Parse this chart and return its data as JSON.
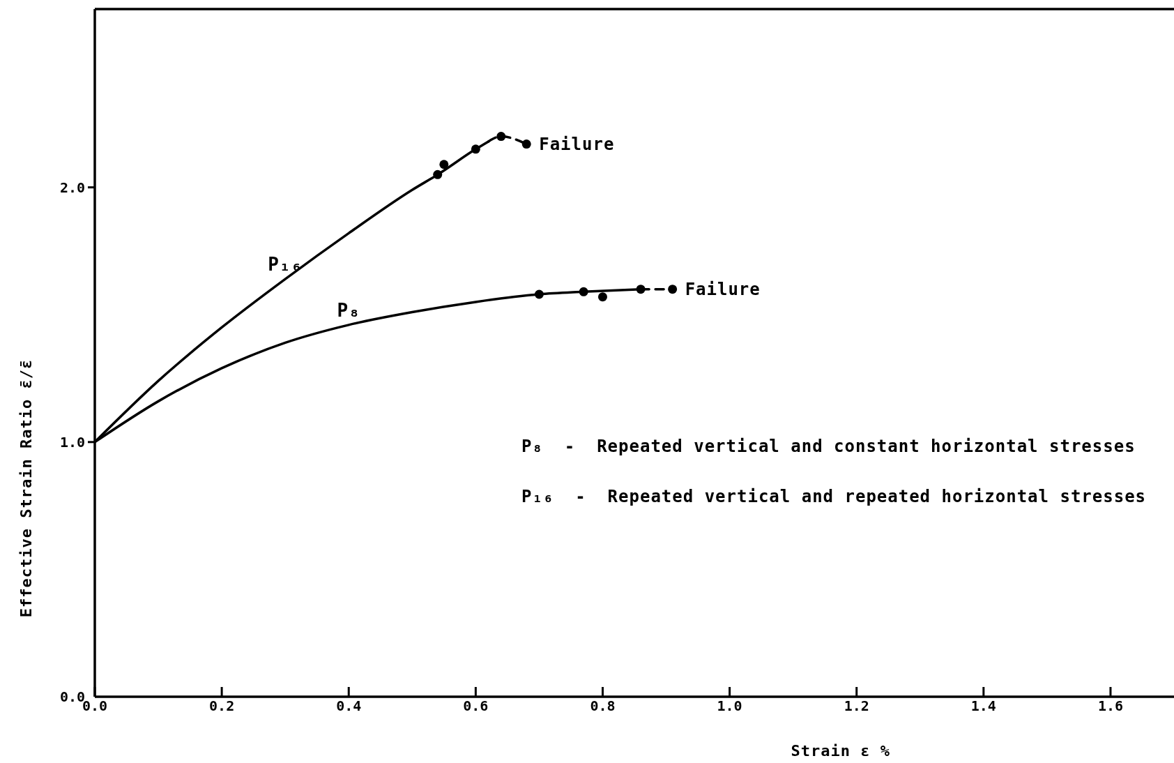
{
  "chart_data": {
    "type": "line",
    "xlabel": "Strain ε %",
    "ylabel": "Effective Strain Ratio ε̄/ε̄",
    "xlim": [
      0,
      1.7
    ],
    "xticks": [
      {
        "value": 0,
        "label": "0.0"
      },
      {
        "value": 0.2,
        "label": "0.2"
      },
      {
        "value": 0.4,
        "label": "0.4"
      },
      {
        "value": 0.6,
        "label": "0.6"
      },
      {
        "value": 0.8,
        "label": "0.8"
      },
      {
        "value": 1,
        "label": "1.0"
      },
      {
        "value": 1.2,
        "label": "1.2"
      },
      {
        "value": 1.4,
        "label": "1.4"
      },
      {
        "value": 1.6,
        "label": "1.6"
      }
    ],
    "ylim": [
      0,
      2.7
    ],
    "yticks": [
      {
        "value": 0,
        "label": "0.0"
      },
      {
        "value": 1,
        "label": "1.0"
      },
      {
        "value": 2,
        "label": "2.0"
      }
    ],
    "series": [
      {
        "name": "P₁₆",
        "color": "#000000",
        "line_style": "solid",
        "marker": "none",
        "x": [
          0,
          0.1,
          0.2,
          0.3,
          0.4,
          0.5,
          0.54,
          0.6,
          0.62
        ],
        "values": [
          1.0,
          1.24,
          1.45,
          1.64,
          1.82,
          1.99,
          2.05,
          2.15,
          2.18
        ]
      },
      {
        "color": "#000000",
        "line_style": "dashed",
        "marker": "none",
        "x": [
          0.62,
          0.64,
          0.68
        ],
        "values": [
          2.18,
          2.2,
          2.17
        ]
      },
      {
        "name": "P₈",
        "color": "#000000",
        "line_style": "solid",
        "marker": "none",
        "x": [
          0,
          0.1,
          0.2,
          0.3,
          0.4,
          0.5,
          0.6,
          0.7,
          0.77,
          0.86
        ],
        "values": [
          1.0,
          1.16,
          1.29,
          1.39,
          1.46,
          1.51,
          1.55,
          1.58,
          1.59,
          1.6
        ]
      },
      {
        "color": "#000000",
        "line_style": "dashed",
        "marker": "none",
        "x": [
          0.86,
          0.91
        ],
        "values": [
          1.6,
          1.6
        ]
      },
      {
        "type": "scatter",
        "color": "#000000",
        "marker": "circle",
        "x": [
          0.54,
          0.55,
          0.6,
          0.64,
          0.68
        ],
        "values": [
          2.05,
          2.09,
          2.15,
          2.2,
          2.17
        ]
      },
      {
        "type": "scatter",
        "color": "#000000",
        "marker": "circle",
        "x": [
          0.7,
          0.77,
          0.8,
          0.86,
          0.91
        ],
        "values": [
          1.58,
          1.59,
          1.57,
          1.6,
          1.6
        ]
      }
    ],
    "annotations": [
      {
        "text": "Failure",
        "x": 0.68,
        "y": 2.17
      },
      {
        "text": "Failure",
        "x": 0.91,
        "y": 1.6
      },
      "P₈  -  Repeated vertical and constant horizontal stresses",
      "P₁₆  -  Repeated vertical and repeated horizontal stresses"
    ]
  }
}
